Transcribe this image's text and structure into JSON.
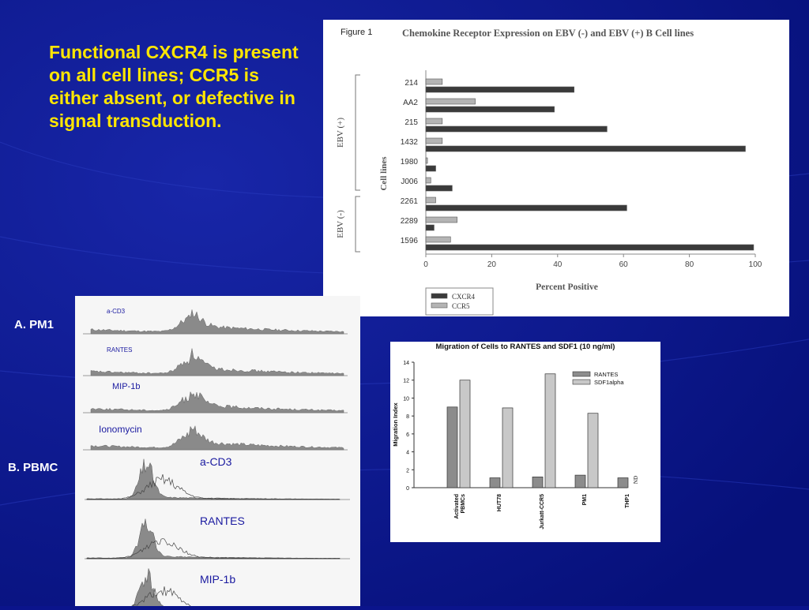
{
  "slide": {
    "headline": "Functional CXCR4 is present on all cell lines; CCR5 is either absent, or defective in signal transduction.",
    "label_a": "A. PM1",
    "label_b": "B. PBMC",
    "colors": {
      "background": "#0b148c",
      "headline": "#ffe600",
      "labels": "#ffffff"
    }
  },
  "histograms": {
    "pm1_labels": [
      "a-CD3",
      "RANTES",
      "MIP-1b",
      "Ionomycin"
    ],
    "pbmc_labels": [
      "a-CD3",
      "RANTES",
      "MIP-1b"
    ]
  },
  "chart_data": [
    {
      "type": "bar",
      "orientation": "horizontal",
      "figure_label": "Figure 1",
      "title": "Chemokine Receptor Expression on EBV (-) and EBV (+) B Cell lines",
      "xlabel": "Percent Positive",
      "ylabel": "Cell lines",
      "xlim": [
        0,
        100
      ],
      "xticks": [
        0,
        20,
        40,
        60,
        80,
        100
      ],
      "categories": [
        "214",
        "AA2",
        "215",
        "1432",
        "1980",
        "J006",
        "2261",
        "2289",
        "1596"
      ],
      "groups": [
        {
          "name": "EBV (+)",
          "categories": [
            "214",
            "AA2",
            "215",
            "1432",
            "1980",
            "J006"
          ]
        },
        {
          "name": "EBV (-)",
          "categories": [
            "2261",
            "2289",
            "1596"
          ]
        }
      ],
      "series": [
        {
          "name": "CCR5",
          "color": "#b4b4b4",
          "values": [
            5,
            15,
            5,
            5,
            0.5,
            1.5,
            3,
            9.5,
            7.5
          ]
        },
        {
          "name": "CXCR4",
          "color": "#3a3a3a",
          "values": [
            45,
            39,
            55,
            97,
            3,
            8,
            61,
            2.5,
            99.5
          ]
        }
      ],
      "legend": [
        "CXCR4",
        "CCR5"
      ],
      "legend_position": "bottom-left"
    },
    {
      "type": "bar",
      "title": "Migration of Cells to RANTES and SDF1 (10 ng/ml)",
      "ylabel": "Migration Index",
      "ylim": [
        0,
        14
      ],
      "yticks": [
        0,
        2,
        4,
        6,
        8,
        10,
        12,
        14
      ],
      "categories": [
        "Activated PBMCs",
        "HUT78",
        "Jurkatt-CCR5",
        "PM1",
        "THP1"
      ],
      "series": [
        {
          "name": "RANTES",
          "color": "#8c8c8c",
          "values": [
            9,
            1.1,
            1.2,
            1.4,
            1.1
          ]
        },
        {
          "name": "SDF1alpha",
          "color": "#c8c8c8",
          "values": [
            12,
            8.9,
            12.7,
            8.3,
            null
          ]
        }
      ],
      "annotations": [
        {
          "category": "THP1",
          "text": "ND"
        }
      ],
      "legend_position": "top-right"
    }
  ]
}
